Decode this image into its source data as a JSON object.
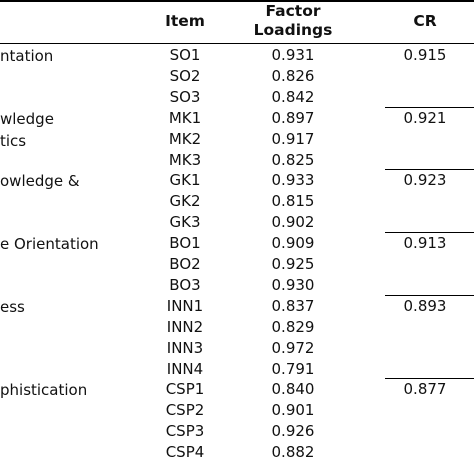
{
  "header": {
    "item": "Item",
    "factor_loadings": [
      "Factor",
      "Loadings"
    ],
    "cr": "CR"
  },
  "groups": [
    {
      "construct": [
        "ntation"
      ],
      "cr": "0.915",
      "rows": [
        {
          "item": "SO1",
          "loading": "0.931"
        },
        {
          "item": "SO2",
          "loading": "0.826"
        },
        {
          "item": "SO3",
          "loading": "0.842"
        }
      ]
    },
    {
      "construct": [
        "wledge",
        "tics"
      ],
      "cr": "0.921",
      "rows": [
        {
          "item": "MK1",
          "loading": "0.897"
        },
        {
          "item": "MK2",
          "loading": "0.917"
        },
        {
          "item": "MK3",
          "loading": "0.825"
        }
      ]
    },
    {
      "construct": [
        "owledge &"
      ],
      "cr": "0.923",
      "rows": [
        {
          "item": "GK1",
          "loading": "0.933"
        },
        {
          "item": "GK2",
          "loading": "0.815"
        },
        {
          "item": "GK3",
          "loading": "0.902"
        }
      ]
    },
    {
      "construct": [
        "e Orientation"
      ],
      "cr": "0.913",
      "rows": [
        {
          "item": "BO1",
          "loading": "0.909"
        },
        {
          "item": "BO2",
          "loading": "0.925"
        },
        {
          "item": "BO3",
          "loading": "0.930"
        }
      ]
    },
    {
      "construct": [
        "ess"
      ],
      "cr": "0.893",
      "rows": [
        {
          "item": "INN1",
          "loading": "0.837"
        },
        {
          "item": "INN2",
          "loading": "0.829"
        },
        {
          "item": "INN3",
          "loading": "0.972"
        },
        {
          "item": "INN4",
          "loading": "0.791"
        }
      ]
    },
    {
      "construct": [
        "phistication"
      ],
      "cr": "0.877",
      "rows": [
        {
          "item": "CSP1",
          "loading": "0.840"
        },
        {
          "item": "CSP2",
          "loading": "0.901"
        },
        {
          "item": "CSP3",
          "loading": "0.926"
        },
        {
          "item": "CSP4",
          "loading": "0.882"
        }
      ]
    }
  ]
}
